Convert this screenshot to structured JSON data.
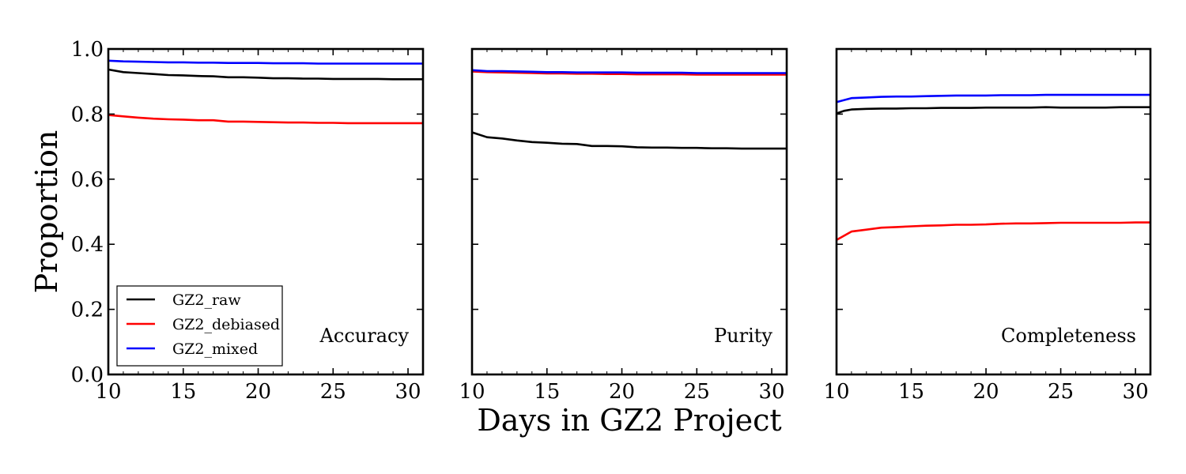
{
  "chart_data": {
    "type": "line",
    "ylabel": "Proportion",
    "xlabel": "Days in GZ2 Project",
    "xlim": [
      10,
      31
    ],
    "ylim": [
      0.0,
      1.0
    ],
    "xticks": [
      "10",
      "15",
      "20",
      "25",
      "30"
    ],
    "yticks": [
      "0.0",
      "0.2",
      "0.4",
      "0.6",
      "0.8",
      "1.0"
    ],
    "grid": false,
    "legend": {
      "placement": "bottom-left of first panel",
      "entries": [
        {
          "name": "GZ2_raw",
          "color": "#000000"
        },
        {
          "name": "GZ2_debiased",
          "color": "#ff0000"
        },
        {
          "name": "GZ2_mixed",
          "color": "#0000ff"
        }
      ]
    },
    "panels": [
      {
        "label": "Accuracy",
        "series": [
          {
            "name": "GZ2_raw",
            "color": "#000000",
            "x": [
              10,
              11,
              12,
              13,
              14,
              15,
              16,
              17,
              18,
              19,
              20,
              21,
              22,
              23,
              24,
              25,
              26,
              27,
              28,
              29,
              30,
              31
            ],
            "y": [
              0.937,
              0.929,
              0.926,
              0.923,
              0.92,
              0.919,
              0.917,
              0.916,
              0.913,
              0.913,
              0.912,
              0.91,
              0.91,
              0.909,
              0.909,
              0.908,
              0.908,
              0.908,
              0.908,
              0.907,
              0.907,
              0.907
            ]
          },
          {
            "name": "GZ2_debiased",
            "color": "#ff0000",
            "x": [
              10,
              11,
              12,
              13,
              14,
              15,
              16,
              17,
              18,
              19,
              20,
              21,
              22,
              23,
              24,
              25,
              26,
              27,
              28,
              29,
              30,
              31
            ],
            "y": [
              0.797,
              0.793,
              0.789,
              0.786,
              0.784,
              0.783,
              0.781,
              0.781,
              0.777,
              0.777,
              0.776,
              0.775,
              0.774,
              0.774,
              0.773,
              0.773,
              0.772,
              0.772,
              0.772,
              0.772,
              0.772,
              0.772
            ]
          },
          {
            "name": "GZ2_mixed",
            "color": "#0000ff",
            "x": [
              10,
              11,
              12,
              13,
              14,
              15,
              16,
              17,
              18,
              19,
              20,
              21,
              22,
              23,
              24,
              25,
              26,
              27,
              28,
              29,
              30,
              31
            ],
            "y": [
              0.964,
              0.962,
              0.961,
              0.96,
              0.959,
              0.959,
              0.958,
              0.958,
              0.957,
              0.957,
              0.957,
              0.956,
              0.956,
              0.956,
              0.955,
              0.955,
              0.955,
              0.955,
              0.955,
              0.955,
              0.955,
              0.955
            ]
          }
        ]
      },
      {
        "label": "Purity",
        "series": [
          {
            "name": "GZ2_raw",
            "color": "#000000",
            "x": [
              10,
              11,
              12,
              13,
              14,
              15,
              16,
              17,
              18,
              19,
              20,
              21,
              22,
              23,
              24,
              25,
              26,
              27,
              28,
              29,
              30,
              31
            ],
            "y": [
              0.744,
              0.729,
              0.725,
              0.719,
              0.714,
              0.712,
              0.709,
              0.708,
              0.702,
              0.702,
              0.701,
              0.698,
              0.697,
              0.697,
              0.696,
              0.696,
              0.695,
              0.695,
              0.694,
              0.694,
              0.694,
              0.694
            ]
          },
          {
            "name": "GZ2_debiased",
            "color": "#ff0000",
            "x": [
              10,
              11,
              12,
              13,
              14,
              15,
              16,
              17,
              18,
              19,
              20,
              21,
              22,
              23,
              24,
              25,
              26,
              27,
              28,
              29,
              30,
              31
            ],
            "y": [
              0.931,
              0.929,
              0.928,
              0.927,
              0.926,
              0.925,
              0.925,
              0.924,
              0.924,
              0.923,
              0.923,
              0.922,
              0.922,
              0.922,
              0.922,
              0.921,
              0.921,
              0.921,
              0.921,
              0.921,
              0.921,
              0.921
            ]
          },
          {
            "name": "GZ2_mixed",
            "color": "#0000ff",
            "x": [
              10,
              11,
              12,
              13,
              14,
              15,
              16,
              17,
              18,
              19,
              20,
              21,
              22,
              23,
              24,
              25,
              26,
              27,
              28,
              29,
              30,
              31
            ],
            "y": [
              0.935,
              0.932,
              0.932,
              0.931,
              0.93,
              0.929,
              0.929,
              0.928,
              0.928,
              0.928,
              0.928,
              0.927,
              0.927,
              0.927,
              0.927,
              0.926,
              0.926,
              0.926,
              0.926,
              0.926,
              0.926,
              0.926
            ]
          }
        ]
      },
      {
        "label": "Completeness",
        "series": [
          {
            "name": "GZ2_raw",
            "color": "#000000",
            "x": [
              10,
              10.5,
              11,
              12,
              13,
              14,
              15,
              16,
              17,
              18,
              19,
              20,
              21,
              22,
              23,
              24,
              25,
              26,
              27,
              28,
              29,
              30,
              31
            ],
            "y": [
              0.802,
              0.81,
              0.814,
              0.816,
              0.817,
              0.817,
              0.818,
              0.818,
              0.819,
              0.819,
              0.819,
              0.82,
              0.82,
              0.82,
              0.82,
              0.821,
              0.82,
              0.82,
              0.82,
              0.82,
              0.821,
              0.821,
              0.821
            ]
          },
          {
            "name": "GZ2_debiased",
            "color": "#ff0000",
            "x": [
              10,
              11,
              12,
              13,
              14,
              15,
              16,
              17,
              18,
              19,
              20,
              21,
              22,
              23,
              24,
              25,
              26,
              27,
              28,
              29,
              30,
              31
            ],
            "y": [
              0.413,
              0.439,
              0.445,
              0.451,
              0.453,
              0.455,
              0.457,
              0.458,
              0.46,
              0.46,
              0.461,
              0.463,
              0.464,
              0.464,
              0.465,
              0.466,
              0.466,
              0.466,
              0.466,
              0.466,
              0.467,
              0.467
            ]
          },
          {
            "name": "GZ2_mixed",
            "color": "#0000ff",
            "x": [
              10,
              11,
              12,
              13,
              14,
              15,
              16,
              17,
              18,
              19,
              20,
              21,
              22,
              23,
              24,
              25,
              26,
              27,
              28,
              29,
              30,
              31
            ],
            "y": [
              0.837,
              0.849,
              0.851,
              0.853,
              0.854,
              0.854,
              0.855,
              0.856,
              0.857,
              0.857,
              0.857,
              0.858,
              0.858,
              0.858,
              0.859,
              0.859,
              0.859,
              0.859,
              0.859,
              0.859,
              0.859,
              0.859
            ]
          }
        ]
      }
    ]
  }
}
